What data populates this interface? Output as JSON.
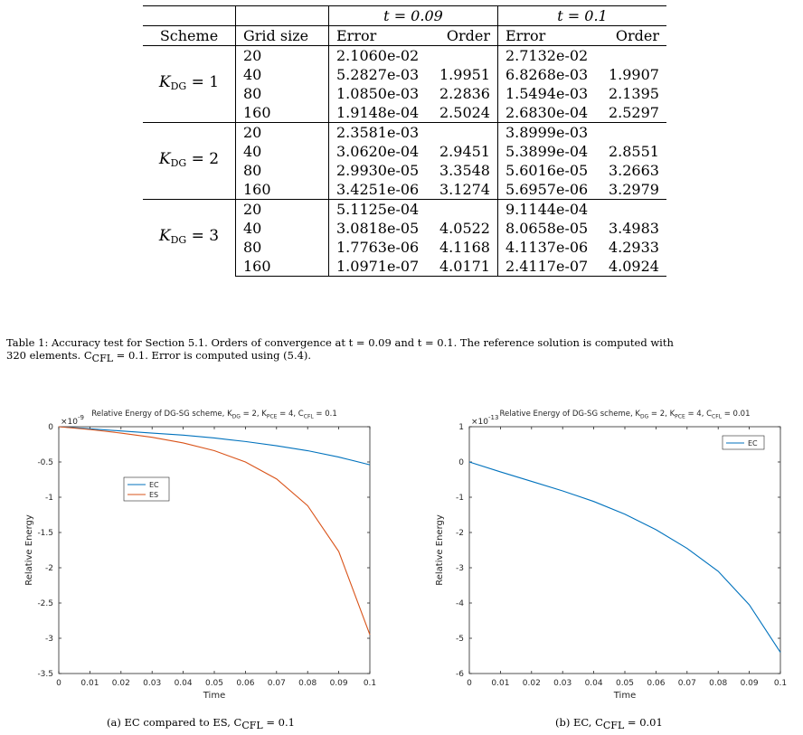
{
  "table": {
    "header_row1": {
      "t1": "t = 0.09",
      "t2": "t = 0.1"
    },
    "header_row2": {
      "scheme": "Scheme",
      "grid": "Grid size",
      "error": "Error",
      "order": "Order"
    },
    "groups": [
      {
        "scheme_k": "K",
        "scheme_sub": "DG",
        "scheme_eq": " = 1",
        "rows": [
          {
            "grid": "20",
            "err1": "2.1060e-02",
            "ord1": "",
            "err2": "2.7132e-02",
            "ord2": ""
          },
          {
            "grid": "40",
            "err1": "5.2827e-03",
            "ord1": "1.9951",
            "err2": "6.8268e-03",
            "ord2": "1.9907"
          },
          {
            "grid": "80",
            "err1": "1.0850e-03",
            "ord1": "2.2836",
            "err2": "1.5494e-03",
            "ord2": "2.1395"
          },
          {
            "grid": "160",
            "err1": "1.9148e-04",
            "ord1": "2.5024",
            "err2": "2.6830e-04",
            "ord2": "2.5297"
          }
        ]
      },
      {
        "scheme_k": "K",
        "scheme_sub": "DG",
        "scheme_eq": " = 2",
        "rows": [
          {
            "grid": "20",
            "err1": "2.3581e-03",
            "ord1": "",
            "err2": "3.8999e-03",
            "ord2": ""
          },
          {
            "grid": "40",
            "err1": "3.0620e-04",
            "ord1": "2.9451",
            "err2": "5.3899e-04",
            "ord2": "2.8551"
          },
          {
            "grid": "80",
            "err1": "2.9930e-05",
            "ord1": "3.3548",
            "err2": "5.6016e-05",
            "ord2": "3.2663"
          },
          {
            "grid": "160",
            "err1": "3.4251e-06",
            "ord1": "3.1274",
            "err2": "5.6957e-06",
            "ord2": "3.2979"
          }
        ]
      },
      {
        "scheme_k": "K",
        "scheme_sub": "DG",
        "scheme_eq": " = 3",
        "rows": [
          {
            "grid": "20",
            "err1": "5.1125e-04",
            "ord1": "",
            "err2": "9.1144e-04",
            "ord2": ""
          },
          {
            "grid": "40",
            "err1": "3.0818e-05",
            "ord1": "4.0522",
            "err2": "8.0658e-05",
            "ord2": "3.4983"
          },
          {
            "grid": "80",
            "err1": "1.7763e-06",
            "ord1": "4.1168",
            "err2": "4.1137e-06",
            "ord2": "4.2933"
          },
          {
            "grid": "160",
            "err1": "1.0971e-07",
            "ord1": "4.0171",
            "err2": "2.4117e-07",
            "ord2": "4.0924"
          }
        ]
      }
    ]
  },
  "caption": {
    "line1": "Table 1: Accuracy test for Section 5.1. Orders of convergence at t = 0.09 and t = 0.1. The reference solution is computed with",
    "line2": "320 elements. C",
    "line2_sub": "CFL",
    "line2_rest": " = 0.1. Error is computed using (5.4)."
  },
  "chart_data": [
    {
      "type": "line",
      "title": "Relative Energy of DG-SG scheme, K_DG = 2, K_PCE = 4, C_CFL = 0.1",
      "title_parts": {
        "pre": "Relative Energy of DG-SG scheme, K",
        "s1": "DG",
        "m1": " = 2, K",
        "s2": "PCE",
        "m2": " = 4, C",
        "s3": "CFL",
        "post": " = 0.1"
      },
      "xlabel": "Time",
      "ylabel": "Relative Energy",
      "exponent_label": "×10",
      "exponent": "-9",
      "xlim": [
        0,
        0.1
      ],
      "ylim": [
        -3.5,
        0
      ],
      "xticks": [
        0,
        0.01,
        0.02,
        0.03,
        0.04,
        0.05,
        0.06,
        0.07,
        0.08,
        0.09,
        0.1
      ],
      "xtick_labels": [
        "0",
        "0.01",
        "0.02",
        "0.03",
        "0.04",
        "0.05",
        "0.06",
        "0.07",
        "0.08",
        "0.09",
        "0.1"
      ],
      "yticks": [
        0,
        -0.5,
        -1,
        -1.5,
        -2,
        -2.5,
        -3,
        -3.5
      ],
      "ytick_labels": [
        "0",
        "-0.5",
        "-1",
        "-1.5",
        "-2",
        "-2.5",
        "-3",
        "-3.5"
      ],
      "legend_position": "upper-left",
      "grid": false,
      "x": [
        0,
        0.01,
        0.02,
        0.03,
        0.04,
        0.05,
        0.06,
        0.07,
        0.08,
        0.09,
        0.1
      ],
      "series": [
        {
          "name": "EC",
          "color": "#0072BD",
          "values": [
            0,
            -0.03,
            -0.06,
            -0.09,
            -0.12,
            -0.16,
            -0.21,
            -0.27,
            -0.34,
            -0.43,
            -0.54
          ]
        },
        {
          "name": "ES",
          "color": "#D95319",
          "values": [
            0,
            -0.04,
            -0.09,
            -0.15,
            -0.23,
            -0.34,
            -0.5,
            -0.74,
            -1.12,
            -1.77,
            -2.95
          ]
        }
      ]
    },
    {
      "type": "line",
      "title": "Relative Energy of DG-SG scheme, K_DG = 2, K_PCE = 4, C_CFL = 0.01",
      "title_parts": {
        "pre": "Relative Energy of DG-SG scheme, K",
        "s1": "DG",
        "m1": " = 2, K",
        "s2": "PCE",
        "m2": " = 4, C",
        "s3": "CFL",
        "post": " = 0.01"
      },
      "xlabel": "Time",
      "ylabel": "Relative Energy",
      "exponent_label": "×10",
      "exponent": "-13",
      "xlim": [
        0,
        0.1
      ],
      "ylim": [
        -6,
        1
      ],
      "xticks": [
        0,
        0.01,
        0.02,
        0.03,
        0.04,
        0.05,
        0.06,
        0.07,
        0.08,
        0.09,
        0.1
      ],
      "xtick_labels": [
        "0",
        "0.01",
        "0.02",
        "0.03",
        "0.04",
        "0.05",
        "0.06",
        "0.07",
        "0.08",
        "0.09",
        "0.1"
      ],
      "yticks": [
        1,
        0,
        -1,
        -2,
        -3,
        -4,
        -5,
        -6
      ],
      "ytick_labels": [
        "1",
        "0",
        "-1",
        "-2",
        "-3",
        "-4",
        "-5",
        "-6"
      ],
      "legend_position": "upper-right",
      "grid": false,
      "x": [
        0,
        0.01,
        0.02,
        0.03,
        0.04,
        0.05,
        0.06,
        0.07,
        0.08,
        0.09,
        0.1
      ],
      "series": [
        {
          "name": "EC",
          "color": "#0072BD",
          "values": [
            0,
            -0.28,
            -0.55,
            -0.82,
            -1.12,
            -1.48,
            -1.92,
            -2.45,
            -3.1,
            -4.05,
            -5.4
          ]
        }
      ]
    }
  ],
  "subcaptions": {
    "a": {
      "pre": "(a) EC compared to ES, C",
      "sub": "CFL",
      "post": " = 0.1"
    },
    "b": {
      "pre": "(b) EC, C",
      "sub": "CFL",
      "post": " = 0.01"
    }
  }
}
